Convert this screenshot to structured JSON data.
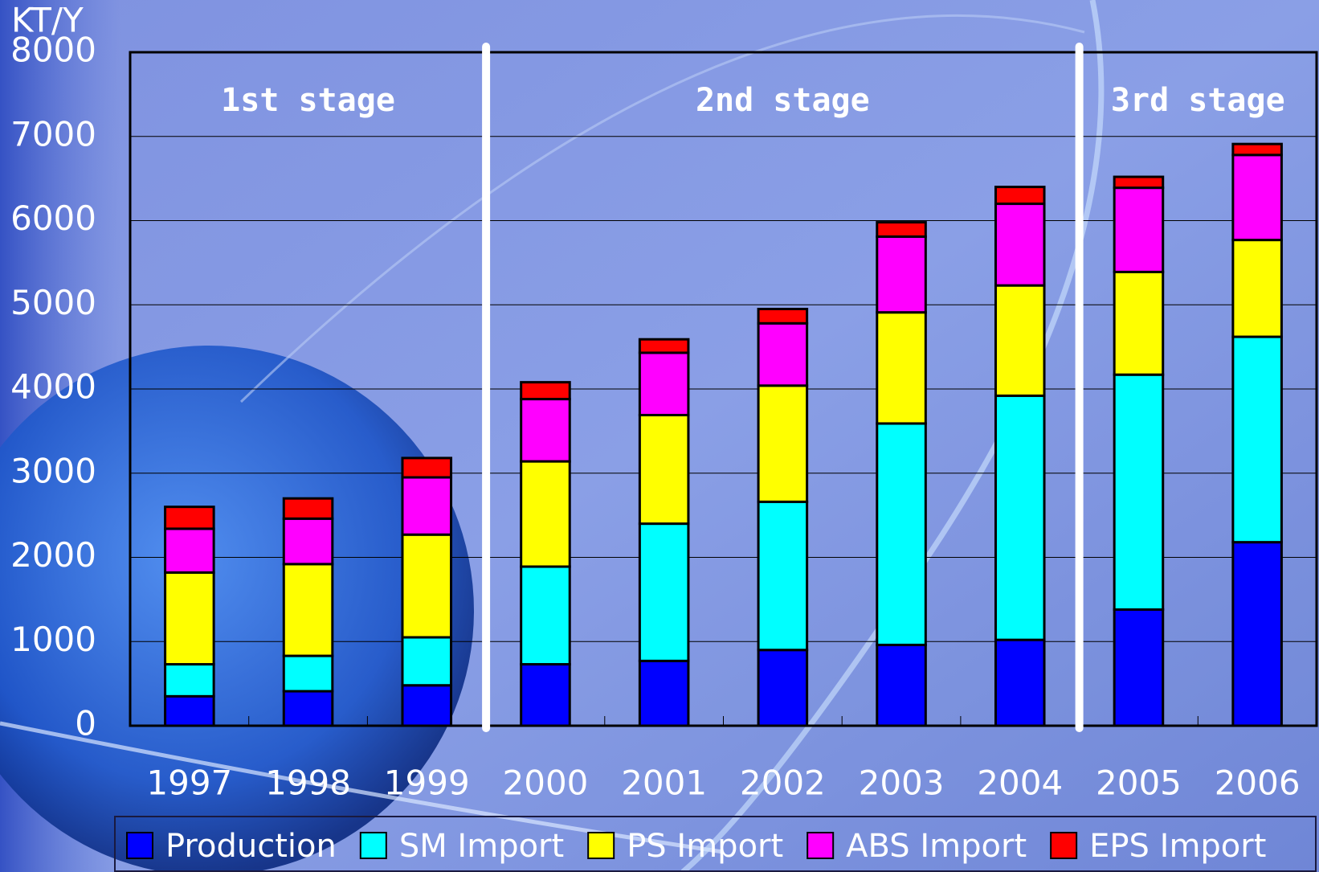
{
  "chart_data": {
    "type": "stacked_bar",
    "y_axis_label": "KT/Y",
    "categories": [
      "1997",
      "1998",
      "1999",
      "2000",
      "2001",
      "2002",
      "2003",
      "2004",
      "2005",
      "2006"
    ],
    "series": [
      {
        "name": "Production",
        "color": "#0000ff",
        "values": [
          350,
          410,
          480,
          730,
          770,
          900,
          960,
          1020,
          1380,
          2180
        ]
      },
      {
        "name": "SM Import",
        "color": "#00ffff",
        "values": [
          380,
          420,
          570,
          1160,
          1630,
          1760,
          2630,
          2900,
          2790,
          2440
        ]
      },
      {
        "name": "PS Import",
        "color": "#ffff00",
        "values": [
          1090,
          1090,
          1220,
          1250,
          1290,
          1380,
          1320,
          1310,
          1220,
          1150
        ]
      },
      {
        "name": "ABS Import",
        "color": "#ff00ff",
        "values": [
          520,
          540,
          680,
          740,
          740,
          740,
          900,
          970,
          1000,
          1010
        ]
      },
      {
        "name": "EPS Import",
        "color": "#ff0000",
        "values": [
          260,
          240,
          230,
          200,
          160,
          170,
          170,
          200,
          130,
          130
        ]
      }
    ],
    "annotations": [
      "1st stage",
      "2nd stage",
      "3rd stage"
    ],
    "ylim": [
      0,
      8000
    ],
    "yticks": [
      0,
      1000,
      2000,
      3000,
      4000,
      5000,
      6000,
      7000,
      8000
    ],
    "grid": true
  }
}
